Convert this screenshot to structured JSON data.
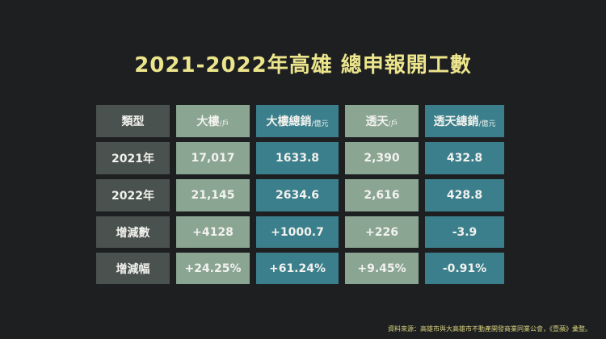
{
  "title": "2021-2022年高雄 總申報開工數",
  "headers": [
    {
      "label": "類型",
      "unit": ""
    },
    {
      "label": "大樓",
      "unit": "/戶"
    },
    {
      "label": "大樓總銷",
      "unit": "/億元"
    },
    {
      "label": "透天",
      "unit": "/戶"
    },
    {
      "label": "透天總銷",
      "unit": "/億元"
    }
  ],
  "rows": [
    [
      "2021年",
      "17,017",
      "1633.8",
      "2,390",
      "432.8"
    ],
    [
      "2022年",
      "21,145",
      "2634.6",
      "2,616",
      "428.8"
    ],
    [
      "增減數",
      "+4128",
      "+1000.7",
      "+226",
      "-3.9"
    ],
    [
      "增減幅",
      "+24.25%",
      "+61.24%",
      "+9.45%",
      "-0.91%"
    ]
  ],
  "source": "資料來源：高雄市與大高雄市不動產開發商業同業公會，《壹蘋》彙整。",
  "colors": {
    "background": "#1d1f21",
    "title": "#ece58c",
    "type_col": "#4a524f",
    "count_col": "#8aa592",
    "sales_col": "#3b7f8c"
  }
}
